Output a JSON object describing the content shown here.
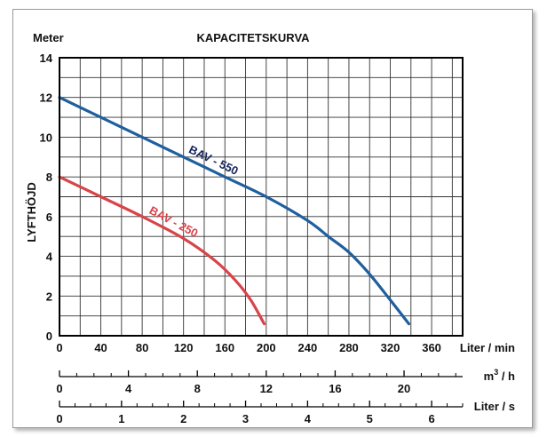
{
  "chart_data": {
    "type": "line",
    "title": "KAPACITETSKURVA",
    "ylabel": "LYFTHÖJD",
    "yunit": "Meter",
    "ylim": [
      0,
      14
    ],
    "yticks": [
      "0",
      "2",
      "4",
      "6",
      "8",
      "10",
      "12",
      "14"
    ],
    "grid": true,
    "xaxes": [
      {
        "unit": "Liter / min",
        "range": [
          0,
          390
        ],
        "ticks": [
          0,
          40,
          80,
          120,
          160,
          200,
          240,
          280,
          320,
          360
        ],
        "tick_labels": [
          "0",
          "40",
          "80",
          "120",
          "160",
          "200",
          "240",
          "280",
          "320",
          "360"
        ],
        "minor_step": 10
      },
      {
        "unit_base": "m",
        "unit_sup": "3",
        "unit_tail": " / h",
        "range": [
          0,
          23.4
        ],
        "ticks": [
          0,
          4,
          8,
          12,
          16,
          20
        ],
        "tick_labels": [
          "0",
          "4",
          "8",
          "12",
          "16",
          "20"
        ],
        "minor_step": 1
      },
      {
        "unit": "Liter / s",
        "range": [
          0,
          6.5
        ],
        "ticks": [
          0,
          1,
          2,
          3,
          4,
          5,
          6
        ],
        "tick_labels": [
          "0",
          "1",
          "2",
          "3",
          "4",
          "5",
          "6"
        ],
        "minor_step": 0.25
      }
    ],
    "series": [
      {
        "name": "BAV - 550",
        "color": "#1f5f9e",
        "label_color": "#14245c",
        "x": [
          0,
          40,
          80,
          120,
          160,
          200,
          240,
          260,
          280,
          300,
          320,
          338
        ],
        "y": [
          12,
          11.0,
          10.0,
          9.0,
          8.0,
          7.0,
          5.8,
          5.0,
          4.2,
          3.1,
          1.8,
          0.6
        ]
      },
      {
        "name": "BAV - 250",
        "color": "#d8444a",
        "label_color": "#d8444a",
        "x": [
          0,
          40,
          80,
          120,
          150,
          170,
          185,
          198
        ],
        "y": [
          8,
          7.0,
          6.0,
          4.9,
          3.8,
          2.8,
          1.8,
          0.6
        ]
      }
    ]
  }
}
